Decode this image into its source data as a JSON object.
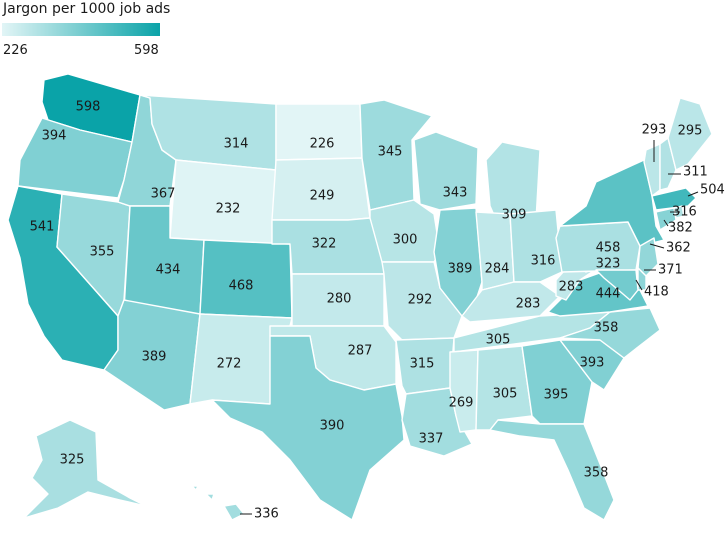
{
  "legend": {
    "title": "Jargon per 1000 job ads",
    "min": 226,
    "max": 598,
    "min_label": "226",
    "max_label": "598",
    "color_low": "#e2f5f6",
    "color_high": "#0aa3a8"
  },
  "states": [
    {
      "id": "WA",
      "value": 598
    },
    {
      "id": "OR",
      "value": 394
    },
    {
      "id": "CA",
      "value": 541
    },
    {
      "id": "NV",
      "value": 355
    },
    {
      "id": "ID",
      "value": 367
    },
    {
      "id": "MT",
      "value": 314
    },
    {
      "id": "WY",
      "value": 232
    },
    {
      "id": "UT",
      "value": 434
    },
    {
      "id": "AZ",
      "value": 389
    },
    {
      "id": "CO",
      "value": 468
    },
    {
      "id": "NM",
      "value": 272
    },
    {
      "id": "ND",
      "value": 226
    },
    {
      "id": "SD",
      "value": 249
    },
    {
      "id": "NE",
      "value": 322
    },
    {
      "id": "KS",
      "value": 280
    },
    {
      "id": "OK",
      "value": 287
    },
    {
      "id": "TX",
      "value": 390
    },
    {
      "id": "MN",
      "value": 345
    },
    {
      "id": "IA",
      "value": 300
    },
    {
      "id": "MO",
      "value": 292
    },
    {
      "id": "AR",
      "value": 315
    },
    {
      "id": "LA",
      "value": 337
    },
    {
      "id": "WI",
      "value": 343
    },
    {
      "id": "IL",
      "value": 389
    },
    {
      "id": "MI",
      "value": 309
    },
    {
      "id": "IN",
      "value": 284
    },
    {
      "id": "OH",
      "value": 316
    },
    {
      "id": "KY",
      "value": 283
    },
    {
      "id": "TN",
      "value": 305
    },
    {
      "id": "MS",
      "value": 269
    },
    {
      "id": "AL",
      "value": 305
    },
    {
      "id": "GA",
      "value": 395
    },
    {
      "id": "FL",
      "value": 358
    },
    {
      "id": "SC",
      "value": 393
    },
    {
      "id": "NC",
      "value": 358
    },
    {
      "id": "VA",
      "value": 444
    },
    {
      "id": "WV",
      "value": 283
    },
    {
      "id": "PA",
      "value": 323
    },
    {
      "id": "NY",
      "value": 458
    },
    {
      "id": "VT",
      "value": 293
    },
    {
      "id": "NH",
      "value": 311
    },
    {
      "id": "ME",
      "value": 295
    },
    {
      "id": "MA",
      "value": 504
    },
    {
      "id": "RI",
      "value": 316
    },
    {
      "id": "CT",
      "value": 382
    },
    {
      "id": "NJ",
      "value": 362
    },
    {
      "id": "DE",
      "value": 371
    },
    {
      "id": "MD",
      "value": 418
    },
    {
      "id": "AK",
      "value": 325
    },
    {
      "id": "HI",
      "value": 336
    }
  ]
}
